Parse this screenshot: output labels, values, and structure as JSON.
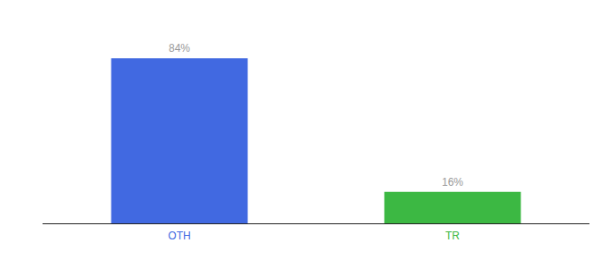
{
  "chart_data": {
    "type": "bar",
    "categories": [
      "OTH",
      "TR"
    ],
    "values": [
      84,
      16
    ],
    "value_labels": [
      "84%",
      "16%"
    ],
    "colors": [
      "#4169e1",
      "#3cb843"
    ],
    "ylim": [
      0,
      100
    ],
    "grid": false,
    "data_labels": true,
    "tick_labels": "x"
  }
}
